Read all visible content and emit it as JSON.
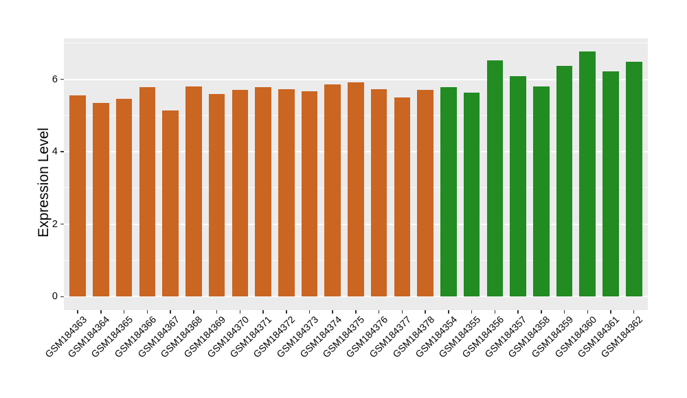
{
  "chart_data": {
    "type": "bar",
    "title": "",
    "xlabel": "",
    "ylabel": "Expression Level",
    "ylim": [
      0,
      7.1
    ],
    "yticks_major": [
      0,
      2,
      4,
      6
    ],
    "yticks_minor": [
      1,
      3,
      5,
      7
    ],
    "grid": true,
    "legend_position": "none",
    "panel_bg": "#EBEBEB",
    "grid_color": "#FFFFFF",
    "tick_color": "#333333",
    "text_color": "#000000",
    "categories": [
      "GSM184363",
      "GSM184364",
      "GSM184365",
      "GSM184366",
      "GSM184367",
      "GSM184368",
      "GSM184369",
      "GSM184370",
      "GSM184371",
      "GSM184372",
      "GSM184373",
      "GSM184374",
      "GSM184375",
      "GSM184376",
      "GSM184377",
      "GSM184378",
      "GSM184354",
      "GSM184355",
      "GSM184356",
      "GSM184357",
      "GSM184358",
      "GSM184359",
      "GSM184360",
      "GSM184361",
      "GSM184362"
    ],
    "values": [
      5.55,
      5.34,
      5.46,
      5.79,
      5.14,
      5.81,
      5.59,
      5.7,
      5.78,
      5.73,
      5.66,
      5.86,
      5.92,
      5.73,
      5.49,
      5.7,
      5.78,
      5.64,
      6.53,
      6.09,
      5.81,
      6.36,
      6.77,
      6.21,
      6.48
    ],
    "groups": [
      "group1",
      "group1",
      "group1",
      "group1",
      "group1",
      "group1",
      "group1",
      "group1",
      "group1",
      "group1",
      "group1",
      "group1",
      "group1",
      "group1",
      "group1",
      "group1",
      "group2",
      "group2",
      "group2",
      "group2",
      "group2",
      "group2",
      "group2",
      "group2",
      "group2"
    ],
    "group_colors": {
      "group1": "#CB6522",
      "group2": "#228B22"
    }
  }
}
